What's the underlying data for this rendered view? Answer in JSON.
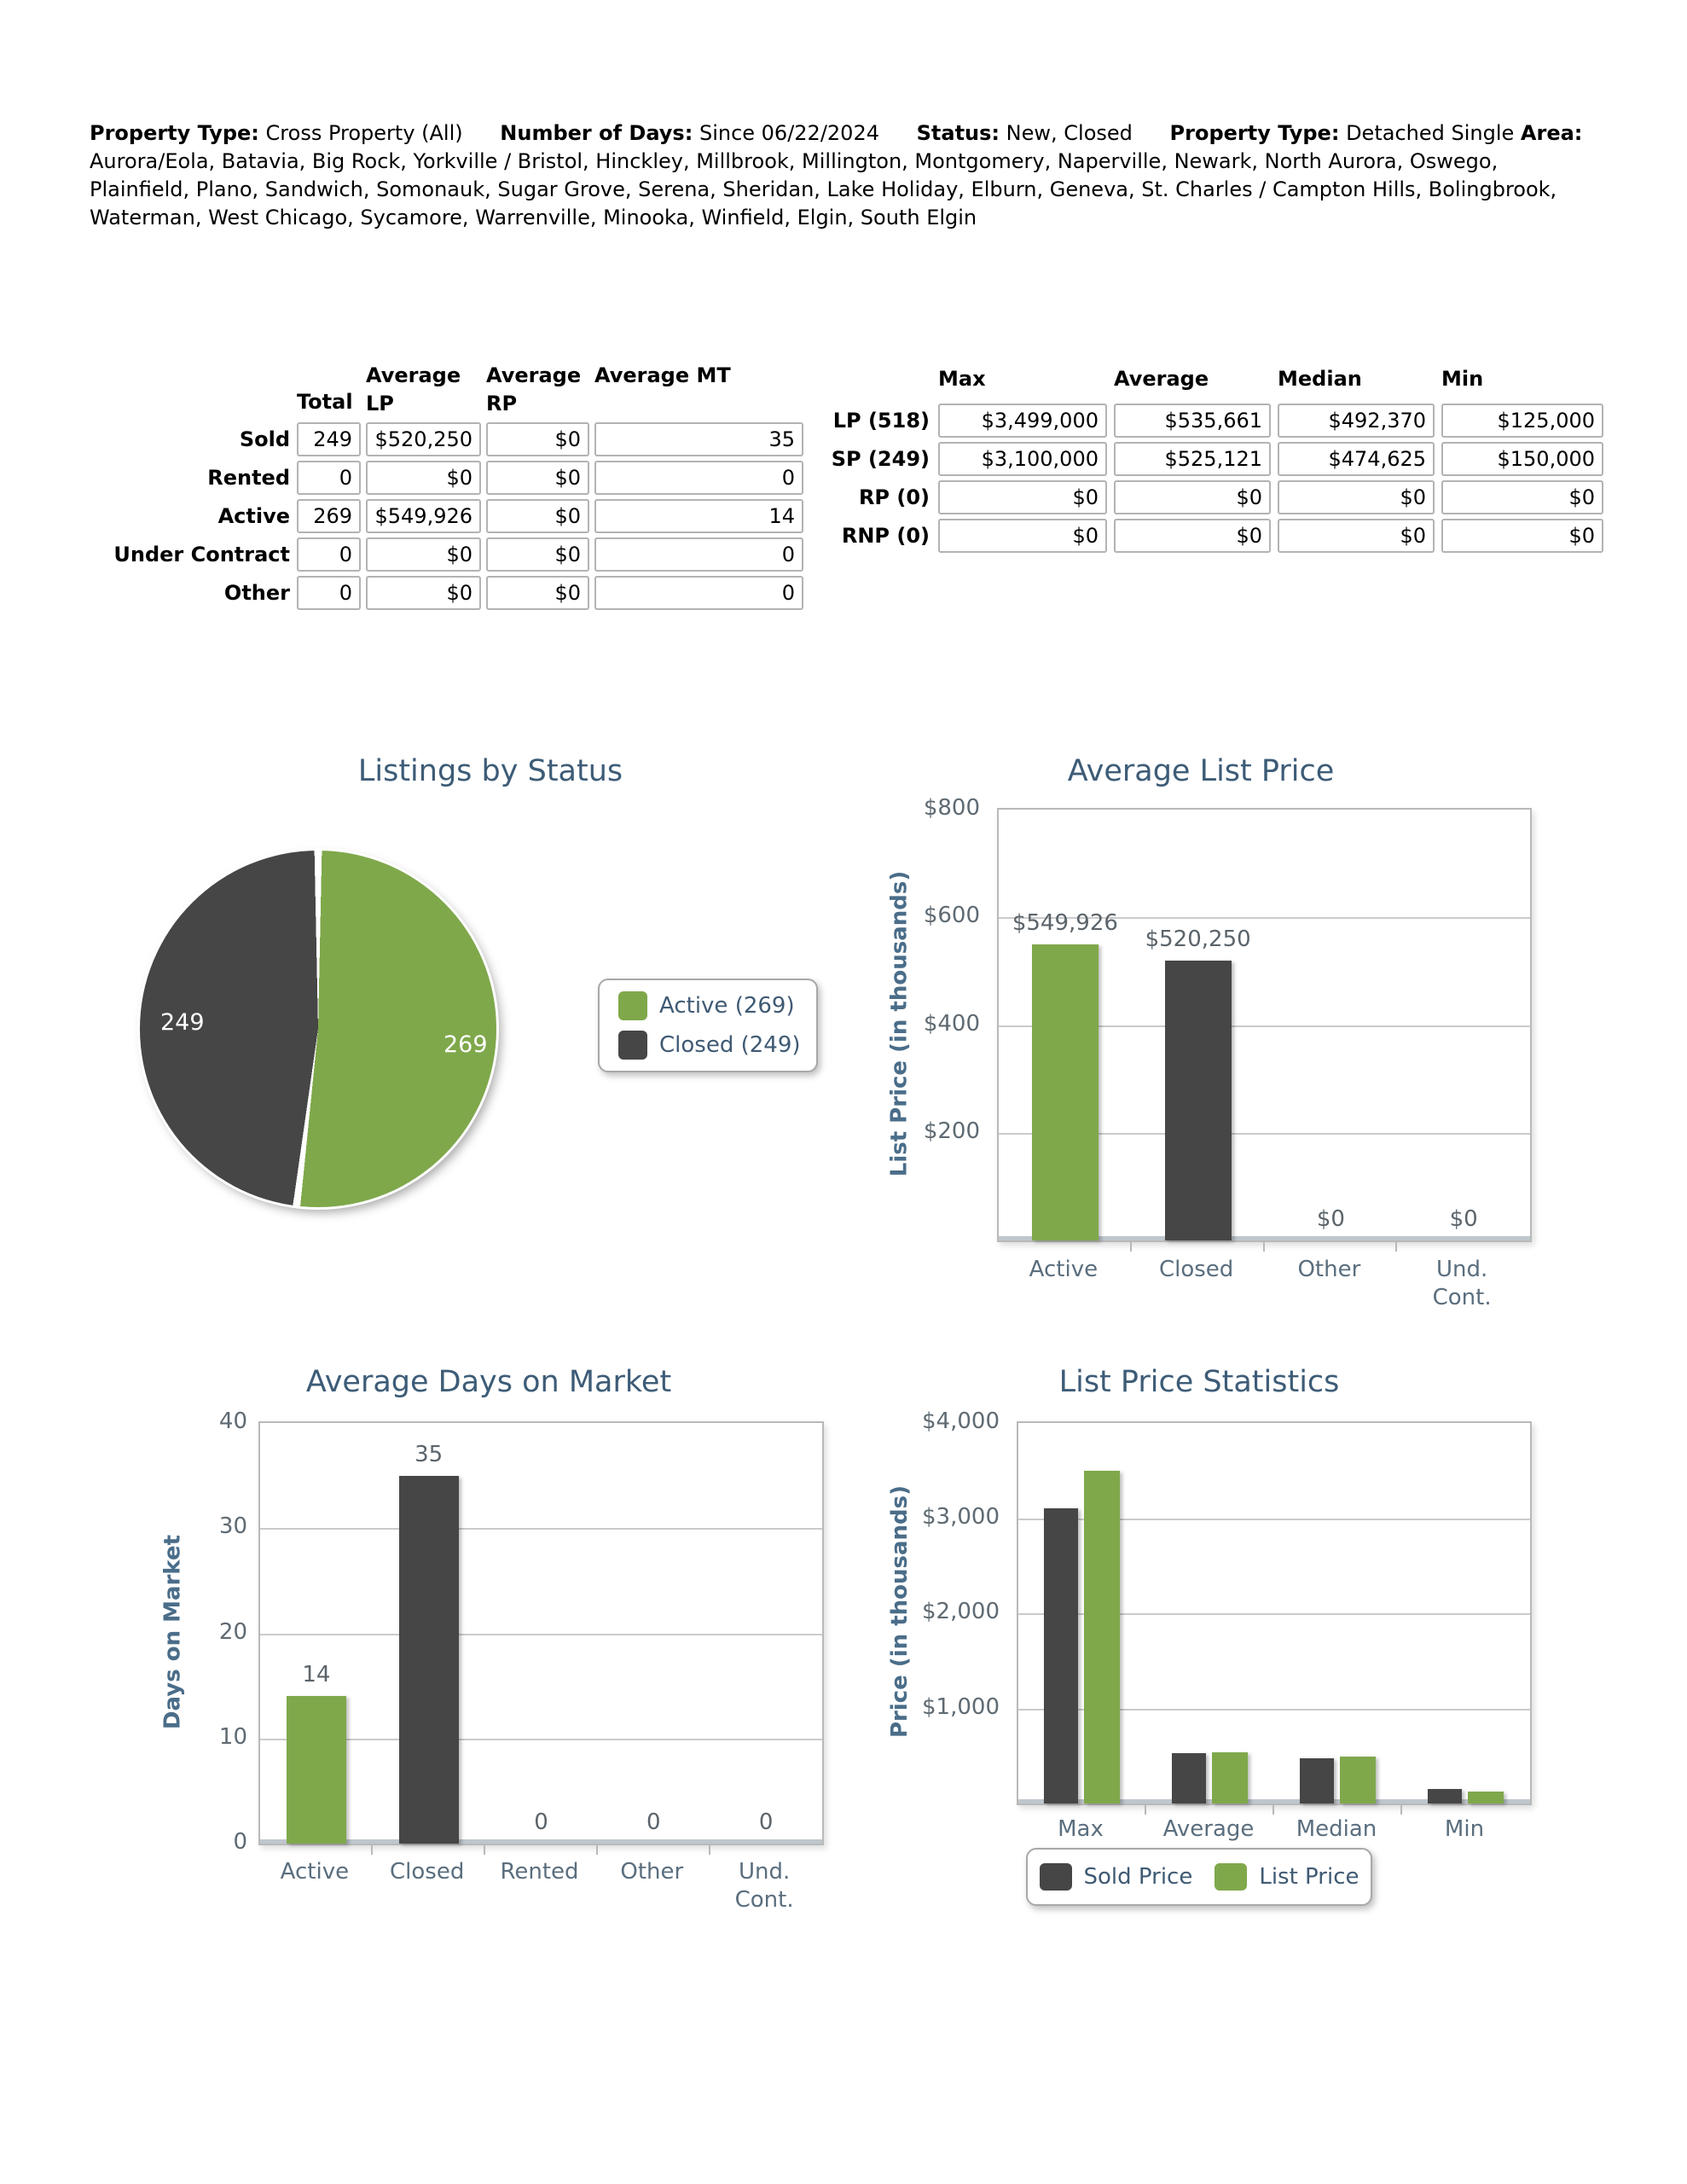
{
  "header": {
    "property_type_label": "Property Type:",
    "property_type_value": "Cross Property (All)",
    "number_of_days_label": "Number of Days:",
    "number_of_days_value": "Since 06/22/2024",
    "status_label": "Status:",
    "status_value": "New, Closed",
    "property_type2_label": "Property Type:",
    "property_type2_value": "Detached Single",
    "area_label": "Area:",
    "area_value": "Aurora/Eola, Batavia, Big Rock, Yorkville / Bristol, Hinckley, Millbrook, Millington, Montgomery, Naperville, Newark, North Aurora, Oswego, Plainfield, Plano, Sandwich, Somonauk, Sugar Grove, Serena, Sheridan, Lake Holiday, Elburn, Geneva, St. Charles / Campton Hills, Bolingbrook, Waterman, West Chicago, Sycamore, Warrenville, Minooka, Winfield, Elgin, South Elgin"
  },
  "summary_table": {
    "columns": [
      "Total",
      "Average LP",
      "Average RP",
      "Average MT"
    ],
    "rows": [
      {
        "label": "Sold",
        "values": [
          "249",
          "$520,250",
          "$0",
          "35"
        ]
      },
      {
        "label": "Rented",
        "values": [
          "0",
          "$0",
          "$0",
          "0"
        ]
      },
      {
        "label": "Active",
        "values": [
          "269",
          "$549,926",
          "$0",
          "14"
        ]
      },
      {
        "label": "Under Contract",
        "values": [
          "0",
          "$0",
          "$0",
          "0"
        ]
      },
      {
        "label": "Other",
        "values": [
          "0",
          "$0",
          "$0",
          "0"
        ]
      }
    ]
  },
  "stats_table": {
    "columns": [
      "Max",
      "Average",
      "Median",
      "Min"
    ],
    "rows": [
      {
        "label": "LP (518)",
        "values": [
          "$3,499,000",
          "$535,661",
          "$492,370",
          "$125,000"
        ]
      },
      {
        "label": "SP (249)",
        "values": [
          "$3,100,000",
          "$525,121",
          "$474,625",
          "$150,000"
        ]
      },
      {
        "label": "RP (0)",
        "values": [
          "$0",
          "$0",
          "$0",
          "$0"
        ]
      },
      {
        "label": "RNP (0)",
        "values": [
          "$0",
          "$0",
          "$0",
          "$0"
        ]
      }
    ]
  },
  "colors": {
    "accent_green": "#7fa84b",
    "accent_dark": "#464646",
    "title_blue": "#3d5c77",
    "axis_blue": "#4a6d89"
  },
  "chart_data": [
    {
      "id": "listings_by_status",
      "type": "pie",
      "title": "Listings by Status",
      "legend_position": "right",
      "slices": [
        {
          "name": "Active",
          "value": 269,
          "color": "#7fa84b",
          "value_label": "269",
          "legend_label": "Active (269)"
        },
        {
          "name": "Closed",
          "value": 249,
          "color": "#464646",
          "value_label": "249",
          "legend_label": "Closed (249)"
        }
      ]
    },
    {
      "id": "average_list_price",
      "type": "bar",
      "title": "Average List Price",
      "ylabel": "List Price (in thousands)",
      "ylim": [
        0,
        800
      ],
      "yticks": [
        "$800",
        "$600",
        "$400",
        "$200"
      ],
      "grid": true,
      "categories": [
        "Active",
        "Closed",
        "Other",
        "Und. Cont."
      ],
      "values": [
        549.926,
        520.25,
        0,
        0
      ],
      "value_labels": [
        "$549,926",
        "$520,250",
        "$0",
        "$0"
      ],
      "bar_colors": [
        "#7fa84b",
        "#464646",
        "#7fa84b",
        "#464646"
      ]
    },
    {
      "id": "average_days_on_market",
      "type": "bar",
      "title": "Average Days on Market",
      "ylabel": "Days on Market",
      "ylim": [
        0,
        40
      ],
      "yticks": [
        "40",
        "30",
        "20",
        "10",
        "0"
      ],
      "grid": true,
      "categories": [
        "Active",
        "Closed",
        "Rented",
        "Other",
        "Und. Cont."
      ],
      "values": [
        14,
        35,
        0,
        0,
        0
      ],
      "value_labels": [
        "14",
        "35",
        "0",
        "0",
        "0"
      ],
      "bar_colors": [
        "#7fa84b",
        "#464646",
        "#7fa84b",
        "#7fa84b",
        "#7fa84b"
      ]
    },
    {
      "id": "list_price_statistics",
      "type": "bar",
      "title": "List Price Statistics",
      "ylabel": "Price (in thousands)",
      "ylim": [
        0,
        4000
      ],
      "yticks": [
        "$4,000",
        "$3,000",
        "$2,000",
        "$1,000"
      ],
      "grid": true,
      "legend_position": "bottom",
      "categories": [
        "Max",
        "Average",
        "Median",
        "Min"
      ],
      "series": [
        {
          "name": "Sold Price",
          "color": "#464646",
          "values": [
            3100,
            525.121,
            474.625,
            150
          ]
        },
        {
          "name": "List Price",
          "color": "#7fa84b",
          "values": [
            3499,
            535.661,
            492.37,
            125
          ]
        }
      ]
    }
  ]
}
